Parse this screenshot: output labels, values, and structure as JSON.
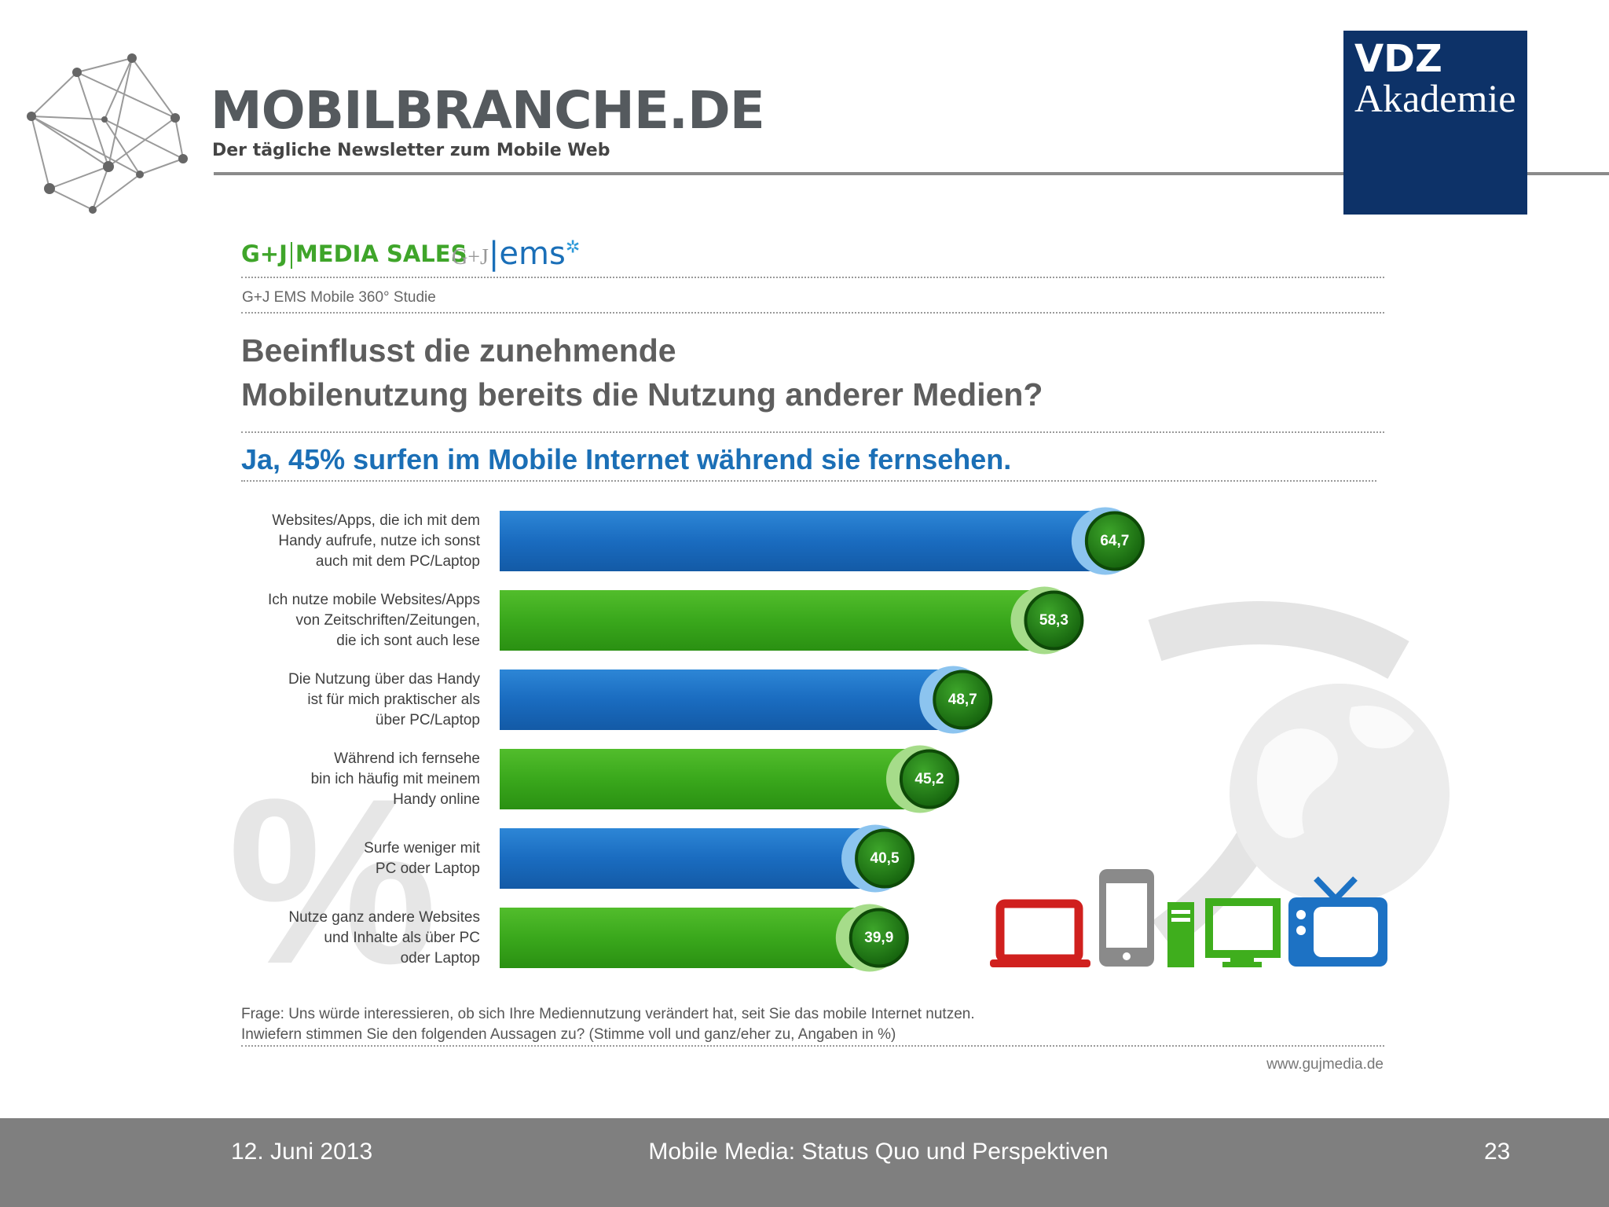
{
  "header": {
    "brand_name": "MOBILBRANCHE.DE",
    "brand_tagline": "Der tägliche Newsletter zum Mobile Web",
    "academy_line1": "VDZ",
    "academy_line2": "Akademie",
    "colors": {
      "academy_box": "#0d3268",
      "rule": "#8a8a8a"
    }
  },
  "study": {
    "publisher_logo": "MEDIA SALES",
    "publisher_prefix": "G+J",
    "ems_logo": "ems",
    "ems_prefix": "G+J",
    "study_name": "G+J EMS Mobile 360° Studie"
  },
  "chart_data": {
    "type": "bar",
    "orientation": "horizontal",
    "title": "Beeinflusst die zunehmende Mobilenutzung bereits die Nutzung anderer Medien?",
    "title_lines": [
      "Beeinflusst die zunehmende",
      "Mobilenutzung bereits die Nutzung anderer Medien?"
    ],
    "subtitle": "Ja, 45% surfen im Mobile Internet während sie fernsehen.",
    "categories": [
      "Websites/Apps, die ich mit dem Handy aufrufe, nutze ich sonst auch mit dem PC/Laptop",
      "Ich nutze mobile Websites/Apps von Zeitschriften/Zeitungen, die ich sont auch lese",
      "Die Nutzung über das Handy ist für mich praktischer als über PC/Laptop",
      "Während ich fernsehe bin ich häufig mit meinem Handy online",
      "Surfe weniger mit PC oder Laptop",
      "Nutze ganz andere Websites und Inhalte als über PC oder Laptop"
    ],
    "category_lines": [
      [
        "Websites/Apps, die ich mit dem",
        "Handy aufrufe, nutze ich sonst",
        "auch mit dem PC/Laptop"
      ],
      [
        "Ich nutze mobile Websites/Apps",
        "von Zeitschriften/Zeitungen,",
        "die ich sont auch lese"
      ],
      [
        "Die Nutzung über das Handy",
        "ist für mich praktischer als",
        "über PC/Laptop"
      ],
      [
        "Während ich fernsehe",
        "bin ich häufig mit meinem",
        "Handy online"
      ],
      [
        "Surfe weniger mit",
        "PC oder Laptop"
      ],
      [
        "Nutze ganz andere Websites",
        "und Inhalte als über PC",
        "oder Laptop"
      ]
    ],
    "values": [
      64.7,
      58.3,
      48.7,
      45.2,
      40.5,
      39.9
    ],
    "value_labels": [
      "64,7",
      "58,3",
      "48,7",
      "45,2",
      "40,5",
      "39,9"
    ],
    "bar_colors": [
      "#1d6fc1",
      "#3aa81c",
      "#1d6fc1",
      "#3aa81c",
      "#1d6fc1",
      "#3aa81c"
    ],
    "badge_color": "#1f7a12",
    "xlim": [
      0,
      100
    ],
    "unit": "%",
    "grid": false,
    "legend": "none"
  },
  "footnote": {
    "line1": "Frage: Uns würde interessieren, ob sich Ihre Mediennutzung verändert hat, seit Sie das mobile Internet nutzen.",
    "line2": "Inwiefern stimmen Sie den folgenden Aussagen zu? (Stimme voll und ganz/eher zu, Angaben in %)",
    "source": "www.gujmedia.de"
  },
  "footer": {
    "date": "12. Juni 2013",
    "title": "Mobile Media: Status Quo und Perspektiven",
    "page_number": "23"
  },
  "icons": [
    "network-logo-icon",
    "percent-watermark-icon",
    "globe-watermark-icon",
    "laptop-icon",
    "smartphone-icon",
    "desktop-pc-icon",
    "tv-icon"
  ]
}
